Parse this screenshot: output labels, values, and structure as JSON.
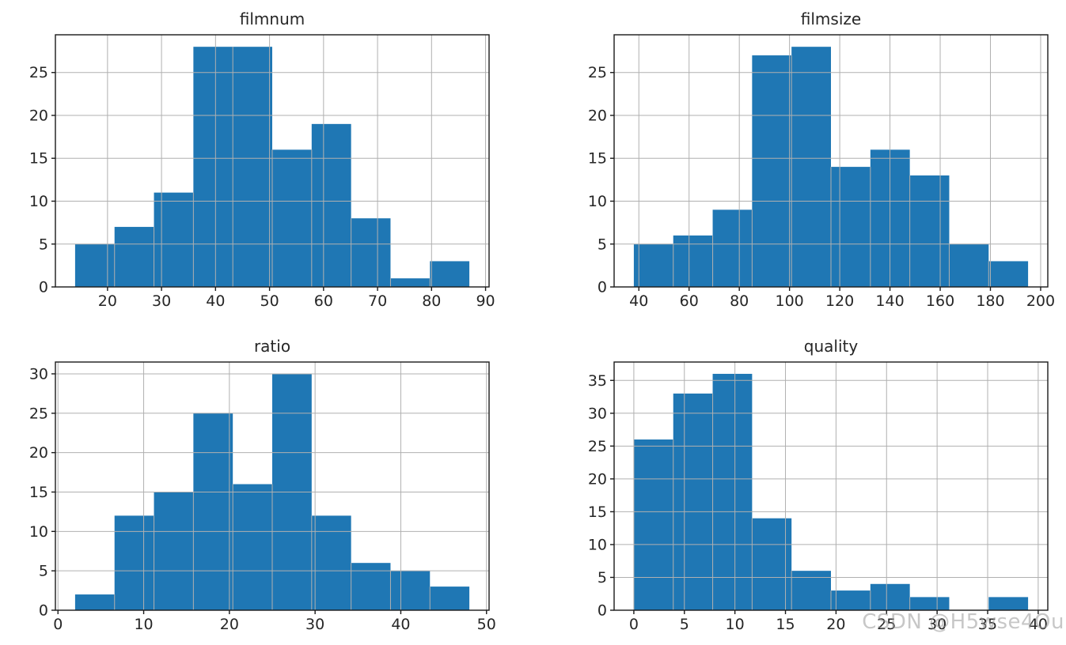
{
  "figure": {
    "background": "#ffffff"
  },
  "colors": {
    "bar": "#1f77b4",
    "grid": "#b0b0b0",
    "spine": "#1a1a1a",
    "tick_label": "#262626",
    "title": "#262626"
  },
  "watermark": {
    "text": "CSDN @H5wse4Ou",
    "color": "#9a9a9a"
  },
  "chart_data": [
    {
      "id": "filmnum",
      "type": "bar",
      "chart_kind": "histogram",
      "title": "filmnum",
      "xlabel": "",
      "ylabel": "",
      "grid": true,
      "legend": false,
      "bin_edges": [
        14,
        21.3,
        28.6,
        35.9,
        43.2,
        50.5,
        57.8,
        65.1,
        72.4,
        79.7,
        87
      ],
      "counts": [
        5,
        7,
        11,
        28,
        28,
        16,
        19,
        8,
        1,
        3
      ],
      "xlim": [
        10.35,
        90.65
      ],
      "ylim": [
        0,
        29.4
      ],
      "xticks": [
        20,
        30,
        40,
        50,
        60,
        70,
        80,
        90
      ],
      "yticks": [
        0,
        5,
        10,
        15,
        20,
        25
      ]
    },
    {
      "id": "filmsize",
      "type": "bar",
      "chart_kind": "histogram",
      "title": "filmsize",
      "xlabel": "",
      "ylabel": "",
      "grid": true,
      "legend": false,
      "bin_edges": [
        38,
        53.7,
        69.4,
        85.1,
        100.8,
        116.5,
        132.2,
        147.9,
        163.6,
        179.3,
        195
      ],
      "counts": [
        5,
        6,
        9,
        27,
        28,
        14,
        16,
        13,
        5,
        3
      ],
      "xlim": [
        30.15,
        202.85
      ],
      "ylim": [
        0,
        29.4
      ],
      "xticks": [
        40,
        60,
        80,
        100,
        120,
        140,
        160,
        180,
        200
      ],
      "yticks": [
        0,
        5,
        10,
        15,
        20,
        25
      ]
    },
    {
      "id": "ratio",
      "type": "bar",
      "chart_kind": "histogram",
      "title": "ratio",
      "xlabel": "",
      "ylabel": "",
      "grid": true,
      "legend": false,
      "bin_edges": [
        2,
        6.6,
        11.2,
        15.8,
        20.4,
        25,
        29.6,
        34.2,
        38.8,
        43.4,
        48
      ],
      "counts": [
        2,
        12,
        15,
        25,
        16,
        30,
        12,
        6,
        5,
        3
      ],
      "xlim": [
        -0.3,
        50.3
      ],
      "ylim": [
        0,
        31.5
      ],
      "xticks": [
        0,
        10,
        20,
        30,
        40,
        50
      ],
      "yticks": [
        0,
        5,
        10,
        15,
        20,
        25,
        30
      ]
    },
    {
      "id": "quality",
      "type": "bar",
      "chart_kind": "histogram",
      "title": "quality",
      "xlabel": "",
      "ylabel": "",
      "grid": true,
      "legend": false,
      "bin_edges": [
        0,
        3.9,
        7.8,
        11.7,
        15.6,
        19.5,
        23.4,
        27.3,
        31.2,
        35.1,
        39
      ],
      "counts": [
        26,
        33,
        36,
        14,
        6,
        3,
        4,
        2,
        0,
        2
      ],
      "xlim": [
        -1.95,
        40.95
      ],
      "ylim": [
        0,
        37.8
      ],
      "xticks": [
        0,
        5,
        10,
        15,
        20,
        25,
        30,
        35,
        40
      ],
      "yticks": [
        0,
        5,
        10,
        15,
        20,
        25,
        30,
        35
      ]
    }
  ]
}
